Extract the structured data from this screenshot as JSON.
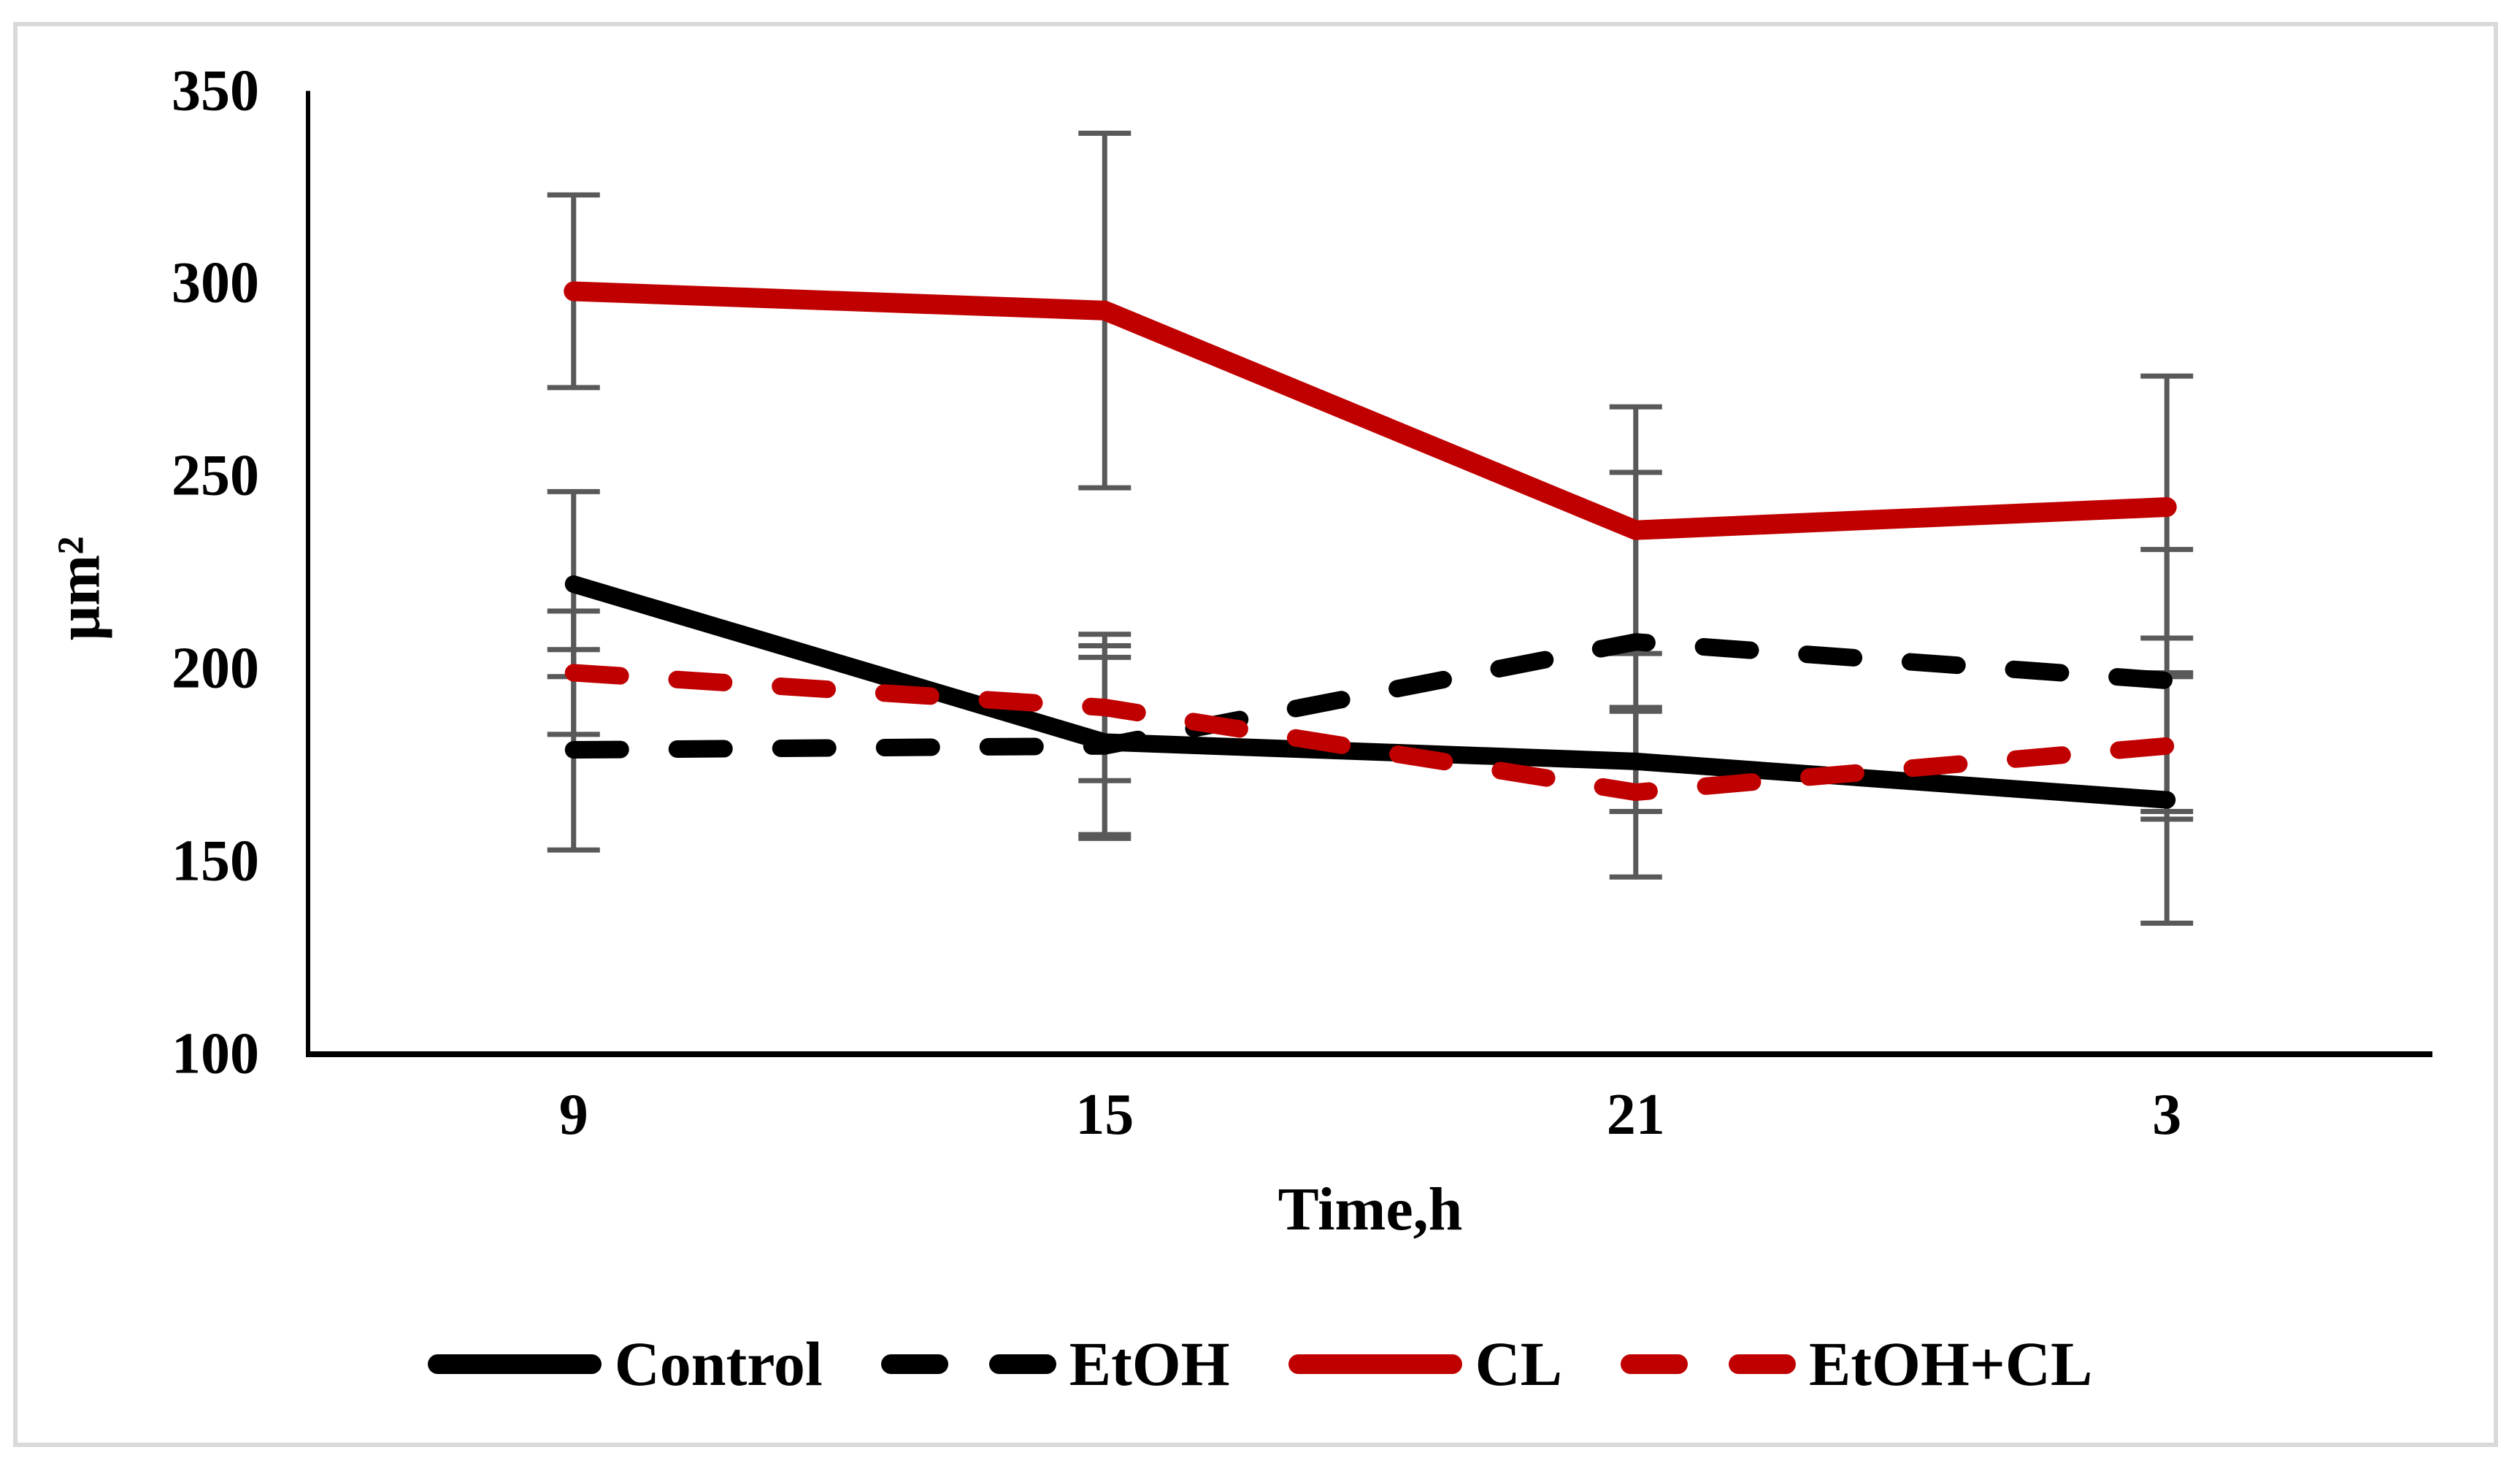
{
  "page": {
    "background_color": "#ffffff",
    "frame_color": "#d9d9d9"
  },
  "chart_data": {
    "type": "line",
    "title": "",
    "xlabel": "Time,h",
    "ylabel": "μm²",
    "categories": [
      "9",
      "15",
      "21",
      "3"
    ],
    "y_axis": {
      "min": 100,
      "max": 350,
      "tick_step": 50,
      "tick_labels": [
        "350",
        "300",
        "250",
        "200",
        "150",
        "100"
      ]
    },
    "grid": false,
    "legend_position": "bottom",
    "axis_color": "#000000",
    "error_bar_color": "#595959",
    "series": [
      {
        "name": "Control",
        "color": "#000000",
        "style": "solid",
        "values": [
          222,
          181,
          176,
          166
        ],
        "errors": [
          24,
          25,
          13,
          32
        ]
      },
      {
        "name": "EtOH",
        "color": "#000000",
        "style": "dashed",
        "values": [
          179,
          180,
          207,
          197
        ],
        "errors": [
          26,
          23,
          44,
          34
        ]
      },
      {
        "name": "CL",
        "color": "#c00000",
        "style": "solid",
        "values": [
          298,
          293,
          236,
          242
        ],
        "errors": [
          25,
          46,
          32,
          34
        ]
      },
      {
        "name": "EtOH+CL",
        "color": "#c00000",
        "style": "dashed",
        "values": [
          199,
          190,
          168,
          180
        ],
        "errors": [
          16,
          19,
          22,
          19
        ]
      }
    ]
  }
}
